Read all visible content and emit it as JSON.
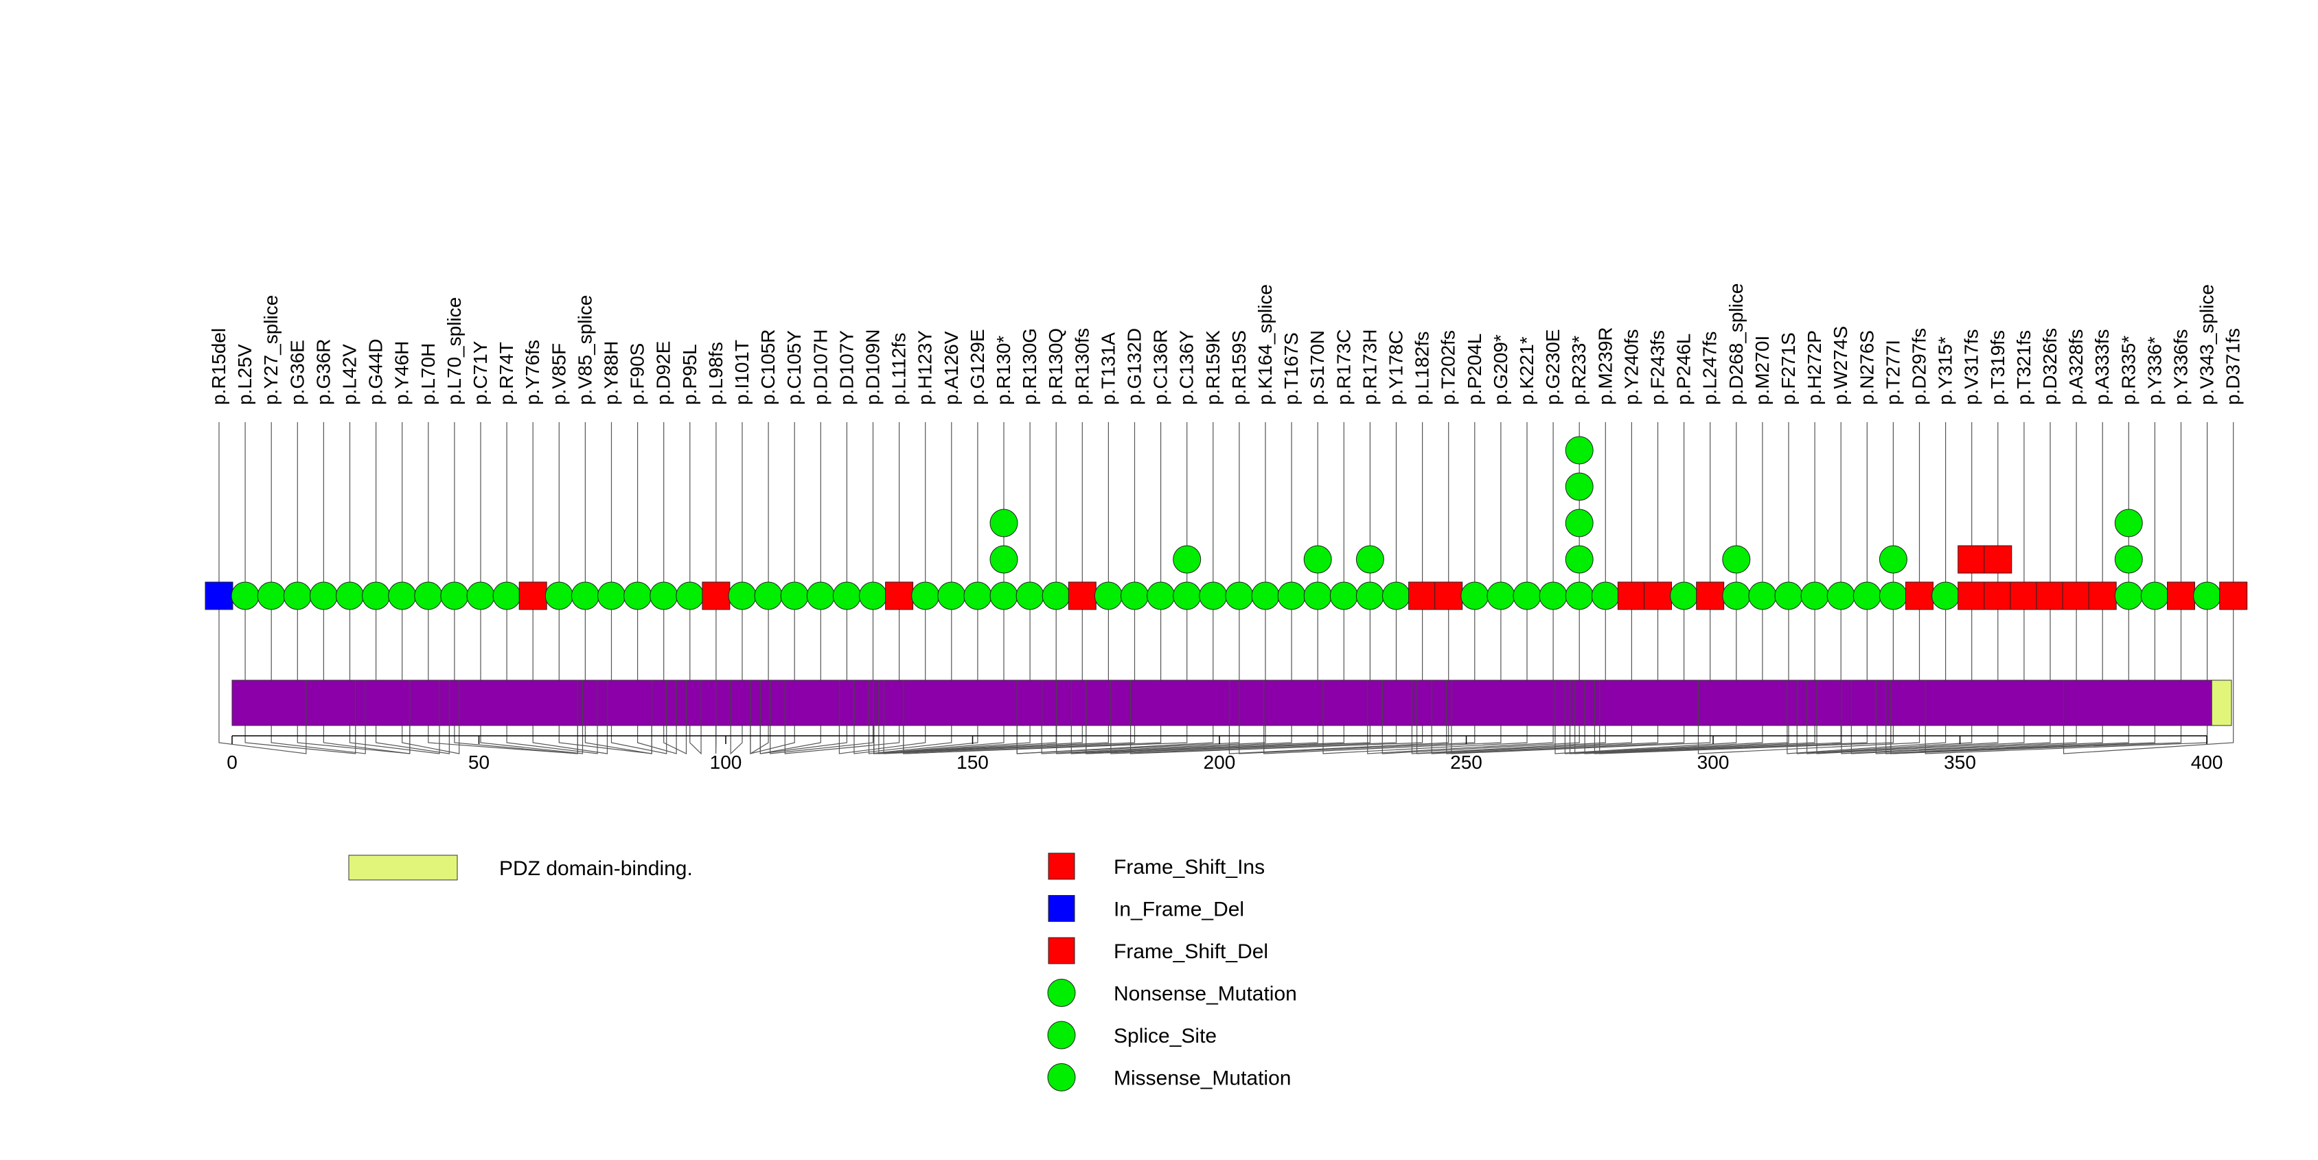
{
  "chart_data": {
    "type": "lollipop",
    "x_axis": {
      "min": 0,
      "max": 405,
      "ticks": [
        0,
        50,
        100,
        150,
        200,
        250,
        300,
        350,
        400
      ]
    },
    "protein_length": 405,
    "domains": [
      {
        "name": "PDZ domain-binding.",
        "start": 401,
        "end": 405,
        "color": "#E2F57B"
      }
    ],
    "protein_color": "#8B00A8",
    "mutation_types": {
      "Frame_Shift_Ins": {
        "color": "#FF0000",
        "shape": "square"
      },
      "In_Frame_Del": {
        "color": "#0000FF",
        "shape": "square"
      },
      "Frame_Shift_Del": {
        "color": "#FF0000",
        "shape": "square"
      },
      "Nonsense_Mutation": {
        "color": "#00EE00",
        "shape": "circle"
      },
      "Splice_Site": {
        "color": "#00EE00",
        "shape": "circle"
      },
      "Missense_Mutation": {
        "color": "#00EE00",
        "shape": "circle"
      }
    },
    "mutations": [
      {
        "label": "p.R15del",
        "pos": 15,
        "type": "In_Frame_Del",
        "count": 1
      },
      {
        "label": "p.L25V",
        "pos": 25,
        "type": "Missense_Mutation",
        "count": 1
      },
      {
        "label": "p.Y27_splice",
        "pos": 27,
        "type": "Splice_Site",
        "count": 1
      },
      {
        "label": "p.G36E",
        "pos": 36,
        "type": "Missense_Mutation",
        "count": 1
      },
      {
        "label": "p.G36R",
        "pos": 36,
        "type": "Missense_Mutation",
        "count": 1
      },
      {
        "label": "p.L42V",
        "pos": 42,
        "type": "Missense_Mutation",
        "count": 1
      },
      {
        "label": "p.G44D",
        "pos": 44,
        "type": "Missense_Mutation",
        "count": 1
      },
      {
        "label": "p.Y46H",
        "pos": 46,
        "type": "Missense_Mutation",
        "count": 1
      },
      {
        "label": "p.L70H",
        "pos": 70,
        "type": "Missense_Mutation",
        "count": 1
      },
      {
        "label": "p.L70_splice",
        "pos": 70,
        "type": "Splice_Site",
        "count": 1
      },
      {
        "label": "p.C71Y",
        "pos": 71,
        "type": "Missense_Mutation",
        "count": 1
      },
      {
        "label": "p.R74T",
        "pos": 74,
        "type": "Missense_Mutation",
        "count": 1
      },
      {
        "label": "p.Y76fs",
        "pos": 76,
        "type": "Frame_Shift_Del",
        "count": 1
      },
      {
        "label": "p.V85F",
        "pos": 85,
        "type": "Missense_Mutation",
        "count": 1
      },
      {
        "label": "p.V85_splice",
        "pos": 85,
        "type": "Splice_Site",
        "count": 1
      },
      {
        "label": "p.Y88H",
        "pos": 88,
        "type": "Missense_Mutation",
        "count": 1
      },
      {
        "label": "p.F90S",
        "pos": 90,
        "type": "Missense_Mutation",
        "count": 1
      },
      {
        "label": "p.D92E",
        "pos": 92,
        "type": "Missense_Mutation",
        "count": 1
      },
      {
        "label": "p.P95L",
        "pos": 95,
        "type": "Missense_Mutation",
        "count": 1
      },
      {
        "label": "p.L98fs",
        "pos": 98,
        "type": "Frame_Shift_Del",
        "count": 1
      },
      {
        "label": "p.I101T",
        "pos": 101,
        "type": "Missense_Mutation",
        "count": 1
      },
      {
        "label": "p.C105R",
        "pos": 105,
        "type": "Missense_Mutation",
        "count": 1
      },
      {
        "label": "p.C105Y",
        "pos": 105,
        "type": "Missense_Mutation",
        "count": 1
      },
      {
        "label": "p.D107H",
        "pos": 107,
        "type": "Missense_Mutation",
        "count": 1
      },
      {
        "label": "p.D107Y",
        "pos": 107,
        "type": "Missense_Mutation",
        "count": 1
      },
      {
        "label": "p.D109N",
        "pos": 109,
        "type": "Missense_Mutation",
        "count": 1
      },
      {
        "label": "p.L112fs",
        "pos": 112,
        "type": "Frame_Shift_Del",
        "count": 1
      },
      {
        "label": "p.H123Y",
        "pos": 123,
        "type": "Missense_Mutation",
        "count": 1
      },
      {
        "label": "p.A126V",
        "pos": 126,
        "type": "Missense_Mutation",
        "count": 1
      },
      {
        "label": "p.G129E",
        "pos": 129,
        "type": "Missense_Mutation",
        "count": 1
      },
      {
        "label": "p.R130*",
        "pos": 130,
        "type": "Nonsense_Mutation",
        "count": 3
      },
      {
        "label": "p.R130G",
        "pos": 130,
        "type": "Missense_Mutation",
        "count": 1
      },
      {
        "label": "p.R130Q",
        "pos": 130,
        "type": "Missense_Mutation",
        "count": 1
      },
      {
        "label": "p.R130fs",
        "pos": 130,
        "type": "Frame_Shift_Del",
        "count": 1
      },
      {
        "label": "p.T131A",
        "pos": 131,
        "type": "Missense_Mutation",
        "count": 1
      },
      {
        "label": "p.G132D",
        "pos": 132,
        "type": "Missense_Mutation",
        "count": 1
      },
      {
        "label": "p.C136R",
        "pos": 136,
        "type": "Missense_Mutation",
        "count": 1
      },
      {
        "label": "p.C136Y",
        "pos": 136,
        "type": "Missense_Mutation",
        "count": 2
      },
      {
        "label": "p.R159K",
        "pos": 159,
        "type": "Missense_Mutation",
        "count": 1
      },
      {
        "label": "p.R159S",
        "pos": 159,
        "type": "Missense_Mutation",
        "count": 1
      },
      {
        "label": "p.K164_splice",
        "pos": 164,
        "type": "Splice_Site",
        "count": 1
      },
      {
        "label": "p.T167S",
        "pos": 167,
        "type": "Missense_Mutation",
        "count": 1
      },
      {
        "label": "p.S170N",
        "pos": 170,
        "type": "Missense_Mutation",
        "count": 2
      },
      {
        "label": "p.R173C",
        "pos": 173,
        "type": "Missense_Mutation",
        "count": 1
      },
      {
        "label": "p.R173H",
        "pos": 173,
        "type": "Missense_Mutation",
        "count": 2
      },
      {
        "label": "p.Y178C",
        "pos": 178,
        "type": "Missense_Mutation",
        "count": 1
      },
      {
        "label": "p.L182fs",
        "pos": 182,
        "type": "Frame_Shift_Del",
        "count": 1
      },
      {
        "label": "p.T202fs",
        "pos": 202,
        "type": "Frame_Shift_Del",
        "count": 1
      },
      {
        "label": "p.P204L",
        "pos": 204,
        "type": "Missense_Mutation",
        "count": 1
      },
      {
        "label": "p.G209*",
        "pos": 209,
        "type": "Nonsense_Mutation",
        "count": 1
      },
      {
        "label": "p.K221*",
        "pos": 221,
        "type": "Nonsense_Mutation",
        "count": 1
      },
      {
        "label": "p.G230E",
        "pos": 230,
        "type": "Missense_Mutation",
        "count": 1
      },
      {
        "label": "p.R233*",
        "pos": 233,
        "type": "Nonsense_Mutation",
        "count": 5
      },
      {
        "label": "p.M239R",
        "pos": 239,
        "type": "Missense_Mutation",
        "count": 1
      },
      {
        "label": "p.Y240fs",
        "pos": 240,
        "type": "Frame_Shift_Del",
        "count": 1
      },
      {
        "label": "p.F243fs",
        "pos": 243,
        "type": "Frame_Shift_Del",
        "count": 1
      },
      {
        "label": "p.P246L",
        "pos": 246,
        "type": "Missense_Mutation",
        "count": 1
      },
      {
        "label": "p.L247fs",
        "pos": 247,
        "type": "Frame_Shift_Del",
        "count": 1
      },
      {
        "label": "p.D268_splice",
        "pos": 268,
        "type": "Splice_Site",
        "count": 2
      },
      {
        "label": "p.M270I",
        "pos": 270,
        "type": "Missense_Mutation",
        "count": 1
      },
      {
        "label": "p.F271S",
        "pos": 271,
        "type": "Missense_Mutation",
        "count": 1
      },
      {
        "label": "p.H272P",
        "pos": 272,
        "type": "Missense_Mutation",
        "count": 1
      },
      {
        "label": "p.W274S",
        "pos": 274,
        "type": "Missense_Mutation",
        "count": 1
      },
      {
        "label": "p.N276S",
        "pos": 276,
        "type": "Missense_Mutation",
        "count": 1
      },
      {
        "label": "p.T277I",
        "pos": 277,
        "type": "Missense_Mutation",
        "count": 2
      },
      {
        "label": "p.D297fs",
        "pos": 297,
        "type": "Frame_Shift_Del",
        "count": 1
      },
      {
        "label": "p.Y315*",
        "pos": 315,
        "type": "Nonsense_Mutation",
        "count": 1
      },
      {
        "label": "p.V317fs",
        "pos": 317,
        "type": "Frame_Shift_Del",
        "count": 2
      },
      {
        "label": "p.T319fs",
        "pos": 319,
        "type": "Frame_Shift_Del",
        "count": 2
      },
      {
        "label": "p.T321fs",
        "pos": 321,
        "type": "Frame_Shift_Del",
        "count": 1
      },
      {
        "label": "p.D326fs",
        "pos": 326,
        "type": "Frame_Shift_Del",
        "count": 1
      },
      {
        "label": "p.A328fs",
        "pos": 328,
        "type": "Frame_Shift_Del",
        "count": 1
      },
      {
        "label": "p.A333fs",
        "pos": 333,
        "type": "Frame_Shift_Del",
        "count": 1
      },
      {
        "label": "p.R335*",
        "pos": 335,
        "type": "Nonsense_Mutation",
        "count": 3
      },
      {
        "label": "p.Y336*",
        "pos": 336,
        "type": "Nonsense_Mutation",
        "count": 1
      },
      {
        "label": "p.Y336fs",
        "pos": 336,
        "type": "Frame_Shift_Del",
        "count": 1
      },
      {
        "label": "p.V343_splice",
        "pos": 343,
        "type": "Splice_Site",
        "count": 1
      },
      {
        "label": "p.D371fs",
        "pos": 371,
        "type": "Frame_Shift_Del",
        "count": 1
      }
    ],
    "legend": {
      "domains": [
        {
          "label": "PDZ domain-binding.",
          "color": "#E2F57B"
        }
      ],
      "mutation_types": [
        {
          "label": "Frame_Shift_Ins",
          "color": "#FF0000",
          "shape": "square"
        },
        {
          "label": "In_Frame_Del",
          "color": "#0000FF",
          "shape": "square"
        },
        {
          "label": "Frame_Shift_Del",
          "color": "#FF0000",
          "shape": "square"
        },
        {
          "label": "Nonsense_Mutation",
          "color": "#00EE00",
          "shape": "circle"
        },
        {
          "label": "Splice_Site",
          "color": "#00EE00",
          "shape": "circle"
        },
        {
          "label": "Missense_Mutation",
          "color": "#00EE00",
          "shape": "circle"
        }
      ]
    }
  }
}
